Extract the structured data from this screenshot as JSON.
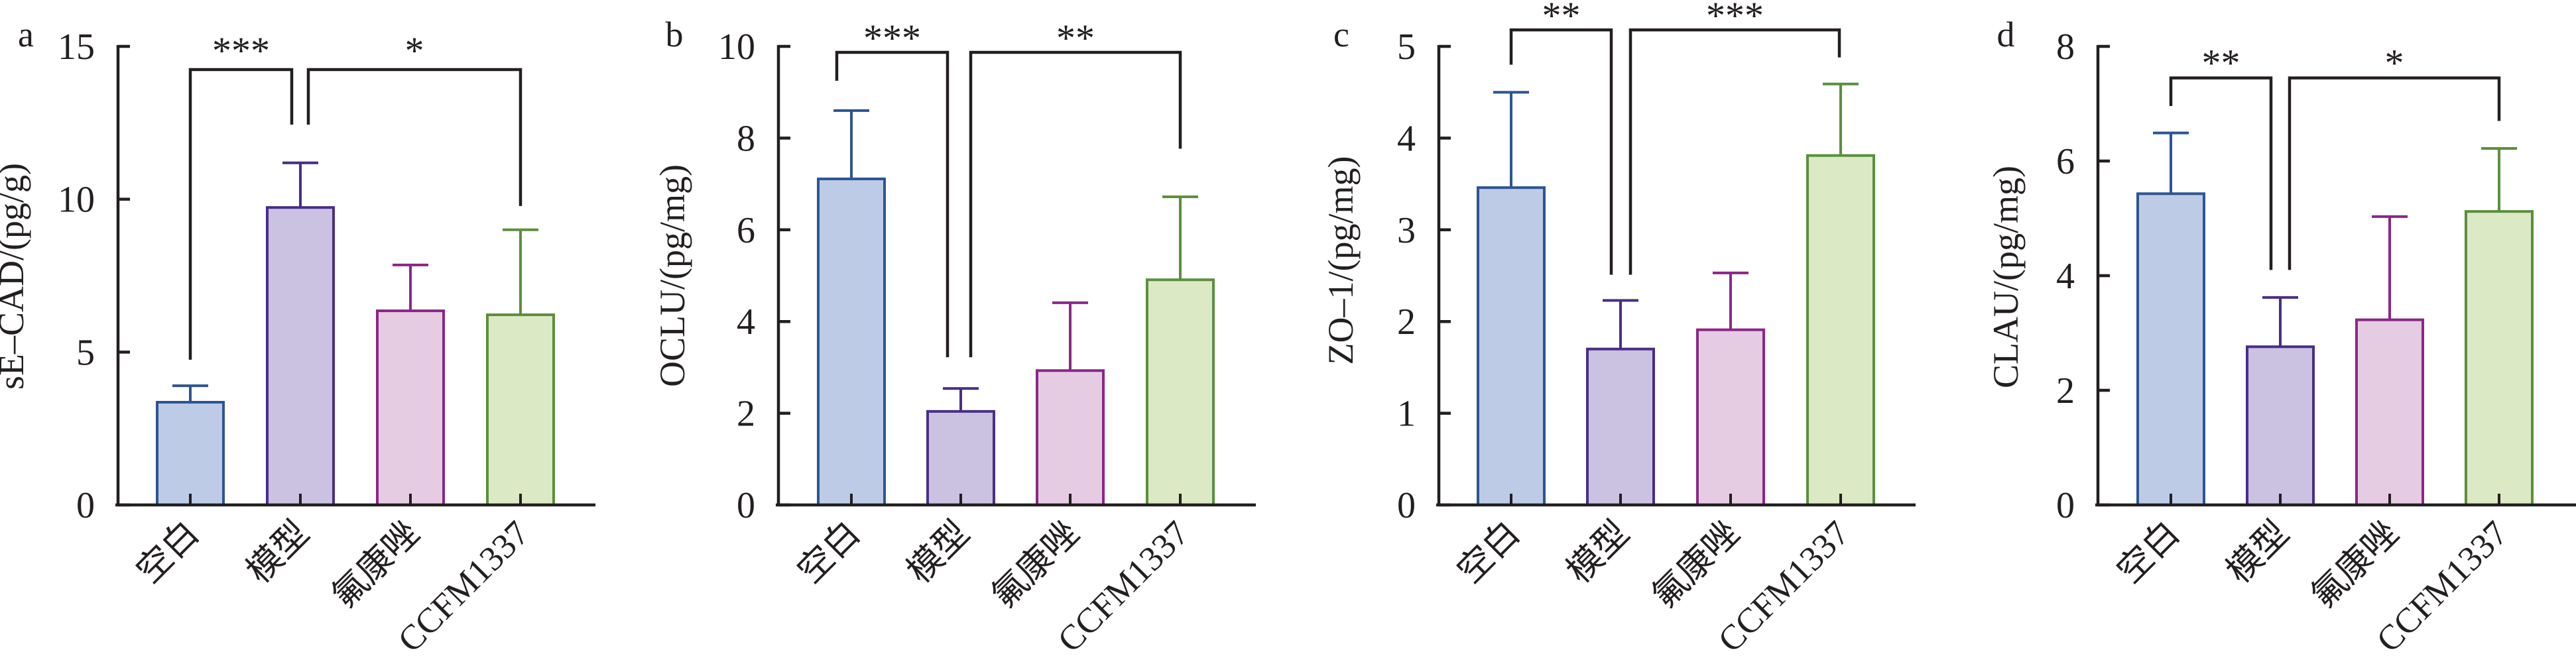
{
  "chart_data": [
    {
      "panel_label": "a",
      "type": "bar",
      "title": "",
      "xlabel": "",
      "ylabel": "sE–CAD/(pg/g)",
      "categories": [
        "空白",
        "模型",
        "氟康唑",
        "CCFM1337"
      ],
      "values": [
        3.36,
        9.73,
        6.35,
        6.22
      ],
      "errors": [
        0.54,
        1.46,
        1.5,
        2.78
      ],
      "ylim": [
        0,
        15
      ],
      "yticks": [
        0,
        5,
        10,
        15
      ],
      "ytick_labels": [
        "0",
        "5",
        "10",
        "15"
      ],
      "significance": [
        {
          "groups": [
            "空白",
            "模型"
          ],
          "label": "***"
        },
        {
          "groups": [
            "模型",
            "CCFM1337"
          ],
          "label": "*"
        }
      ],
      "bar_fill_colors": [
        "#bdcbe6",
        "#cbc1e1",
        "#e5cce3",
        "#dce9c5"
      ],
      "bar_edge_colors": [
        "#2d5591",
        "#4a2d87",
        "#8b2787",
        "#5b8f3d"
      ],
      "grid": false,
      "legend": "none"
    },
    {
      "panel_label": "b",
      "type": "bar",
      "title": "",
      "xlabel": "",
      "ylabel": "OCLU/(pg/mg)",
      "categories": [
        "空白",
        "模型",
        "氟康唑",
        "CCFM1337"
      ],
      "values": [
        7.11,
        2.04,
        2.93,
        4.91
      ],
      "errors": [
        1.49,
        0.5,
        1.48,
        1.81
      ],
      "ylim": [
        0,
        10
      ],
      "yticks": [
        0,
        2,
        4,
        6,
        8,
        10
      ],
      "ytick_labels": [
        "0",
        "2",
        "4",
        "6",
        "8",
        "10"
      ],
      "significance": [
        {
          "groups": [
            "空白",
            "模型"
          ],
          "label": "***"
        },
        {
          "groups": [
            "模型",
            "CCFM1337"
          ],
          "label": "**"
        }
      ],
      "bar_fill_colors": [
        "#bdcbe6",
        "#cbc1e1",
        "#e5cce3",
        "#dce9c5"
      ],
      "bar_edge_colors": [
        "#2d5591",
        "#4a2d87",
        "#8b2787",
        "#5b8f3d"
      ],
      "grid": false,
      "legend": "none"
    },
    {
      "panel_label": "c",
      "type": "bar",
      "title": "",
      "xlabel": "",
      "ylabel": "ZO–1/(pg/mg)",
      "categories": [
        "空白",
        "模型",
        "氟康唑",
        "CCFM1337"
      ],
      "values": [
        3.46,
        1.7,
        1.91,
        3.81
      ],
      "errors": [
        1.04,
        0.53,
        0.62,
        0.78
      ],
      "ylim": [
        0,
        5
      ],
      "yticks": [
        0,
        1,
        2,
        3,
        4,
        5
      ],
      "ytick_labels": [
        "0",
        "1",
        "2",
        "3",
        "4",
        "5"
      ],
      "significance": [
        {
          "groups": [
            "空白",
            "模型"
          ],
          "label": "**"
        },
        {
          "groups": [
            "模型",
            "CCFM1337"
          ],
          "label": "***"
        }
      ],
      "bar_fill_colors": [
        "#bdcbe6",
        "#cbc1e1",
        "#e5cce3",
        "#dce9c5"
      ],
      "bar_edge_colors": [
        "#2d5591",
        "#4a2d87",
        "#8b2787",
        "#5b8f3d"
      ],
      "grid": false,
      "legend": "none"
    },
    {
      "panel_label": "d",
      "type": "bar",
      "title": "",
      "xlabel": "",
      "ylabel": "CLAU/(pg/mg)",
      "categories": [
        "空白",
        "模型",
        "氟康唑",
        "CCFM1337"
      ],
      "values": [
        5.43,
        2.76,
        3.23,
        5.12
      ],
      "errors": [
        1.06,
        0.86,
        1.8,
        1.1
      ],
      "ylim": [
        0,
        8
      ],
      "yticks": [
        0,
        2,
        4,
        6,
        8
      ],
      "ytick_labels": [
        "0",
        "2",
        "4",
        "6",
        "8"
      ],
      "significance": [
        {
          "groups": [
            "空白",
            "模型"
          ],
          "label": "**"
        },
        {
          "groups": [
            "模型",
            "CCFM1337"
          ],
          "label": "*"
        }
      ],
      "bar_fill_colors": [
        "#bdcbe6",
        "#cbc1e1",
        "#e5cce3",
        "#dce9c5"
      ],
      "bar_edge_colors": [
        "#2d5591",
        "#4a2d87",
        "#8b2787",
        "#5b8f3d"
      ],
      "grid": false,
      "legend": "none"
    }
  ]
}
